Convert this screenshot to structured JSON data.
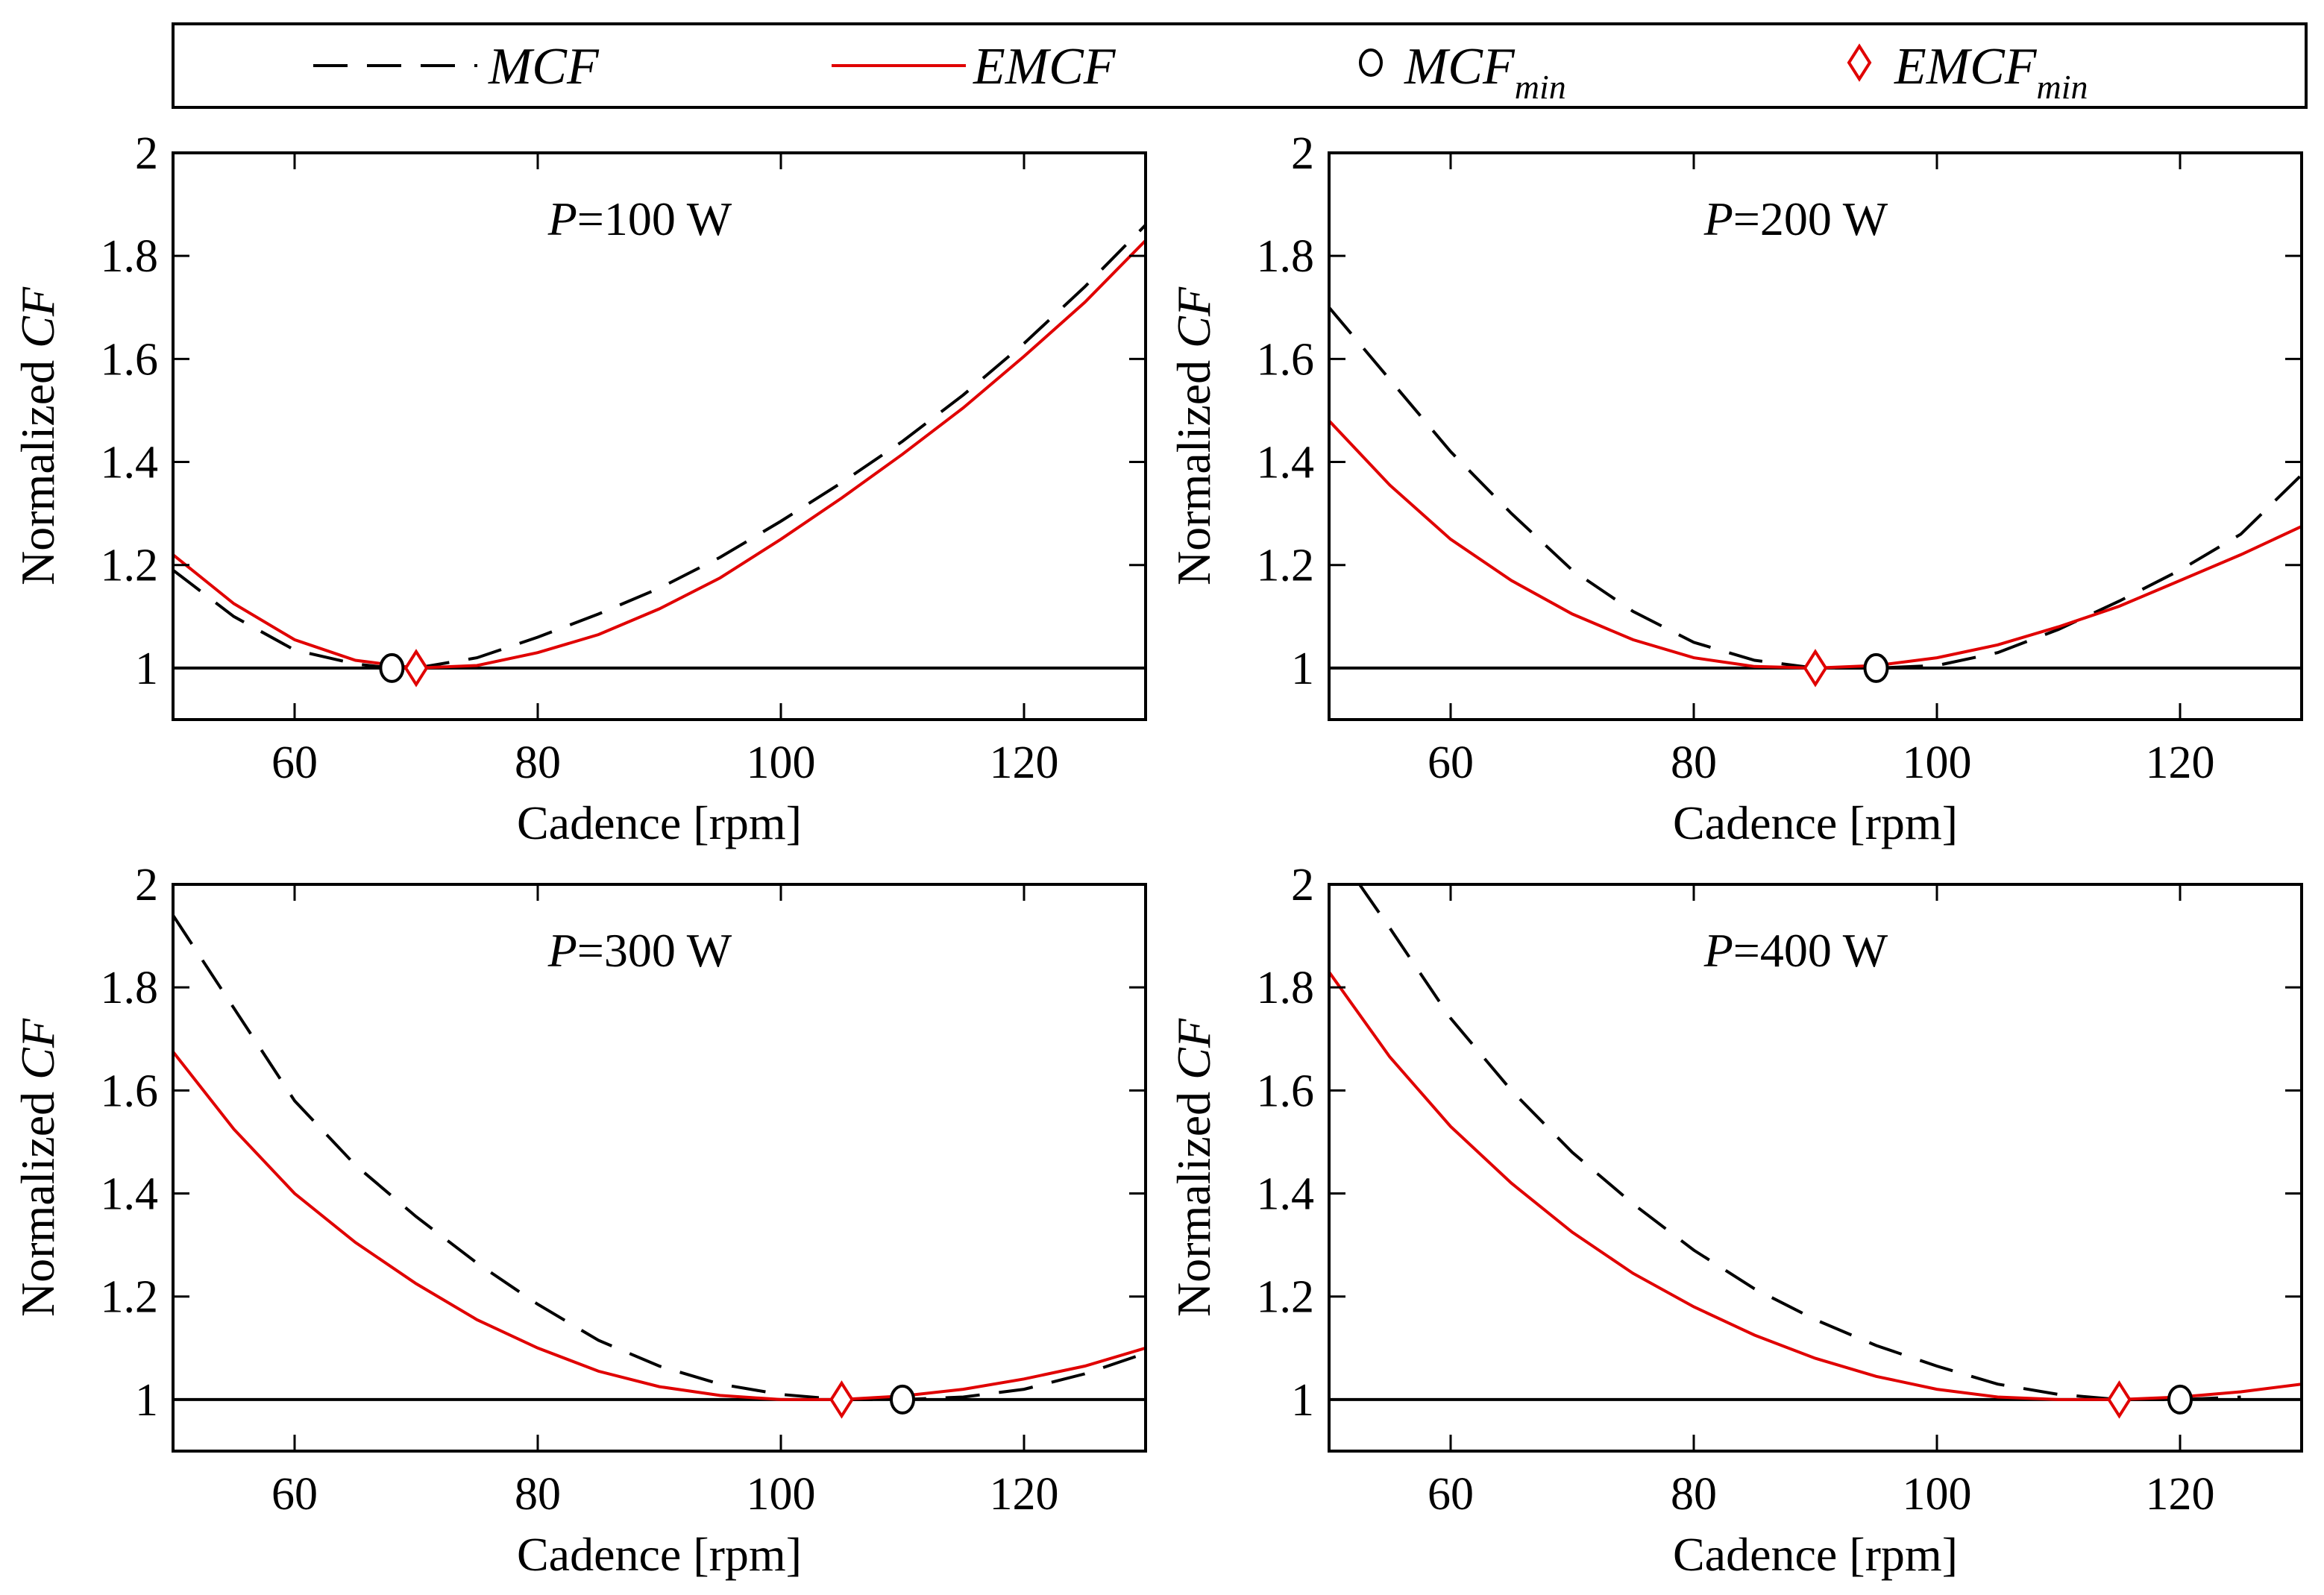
{
  "legend": {
    "items": [
      {
        "name": "MCF",
        "main": "MCF",
        "sub": "",
        "kind": "dashed-line",
        "color": "#000000"
      },
      {
        "name": "EMCF",
        "main": "EMCF",
        "sub": "",
        "kind": "solid-line",
        "color": "#e00000"
      },
      {
        "name": "MCF_min",
        "main": "MCF",
        "sub": "min",
        "kind": "circle-marker",
        "color": "#000000"
      },
      {
        "name": "EMCF_min",
        "main": "EMCF",
        "sub": "min",
        "kind": "diamond-marker",
        "color": "#e00000"
      }
    ]
  },
  "colors": {
    "mcf": "#000000",
    "emcf": "#e00000",
    "reference": "#000000"
  },
  "chart_data": [
    {
      "type": "line",
      "title_prefix": "P",
      "title_suffix": "=100 W",
      "xlabel": "Cadence [rpm]",
      "ylabel_prefix": "Normalized ",
      "ylabel_italic": "CF",
      "xlim": [
        50,
        130
      ],
      "ylim": [
        0.9,
        2.0
      ],
      "xticks": [
        60,
        80,
        100,
        120
      ],
      "yticks": [
        1,
        1.2,
        1.4,
        1.6,
        1.8,
        2
      ],
      "ytick_labels": [
        "1",
        "1.2",
        "1.4",
        "1.6",
        "1.8",
        "2"
      ],
      "reference_line": 1,
      "series": [
        {
          "name": "MCF",
          "x": [
            50,
            55,
            60,
            65,
            68,
            70,
            75,
            80,
            85,
            90,
            95,
            100,
            105,
            110,
            115,
            120,
            125,
            130
          ],
          "y": [
            1.19,
            1.1,
            1.035,
            1.008,
            1.0,
            1.0,
            1.02,
            1.06,
            1.105,
            1.155,
            1.215,
            1.285,
            1.36,
            1.44,
            1.53,
            1.63,
            1.74,
            1.86
          ]
        },
        {
          "name": "EMCF",
          "x": [
            50,
            55,
            60,
            65,
            70,
            75,
            80,
            85,
            90,
            95,
            100,
            105,
            110,
            115,
            120,
            125,
            130
          ],
          "y": [
            1.22,
            1.125,
            1.055,
            1.015,
            1.0,
            1.005,
            1.03,
            1.065,
            1.115,
            1.175,
            1.25,
            1.33,
            1.415,
            1.505,
            1.605,
            1.71,
            1.83
          ]
        }
      ],
      "markers": {
        "MCF_min": {
          "x": 68,
          "y": 1.0
        },
        "EMCF_min": {
          "x": 70,
          "y": 1.0
        }
      }
    },
    {
      "type": "line",
      "title_prefix": "P",
      "title_suffix": "=200 W",
      "xlabel": "Cadence [rpm]",
      "ylabel_prefix": "Normalized ",
      "ylabel_italic": "CF",
      "xlim": [
        50,
        130
      ],
      "ylim": [
        0.9,
        2.0
      ],
      "xticks": [
        60,
        80,
        100,
        120
      ],
      "yticks": [
        1,
        1.2,
        1.4,
        1.6,
        1.8,
        2
      ],
      "ytick_labels": [
        "1",
        "1.2",
        "1.4",
        "1.6",
        "1.8",
        "2"
      ],
      "reference_line": 1,
      "series": [
        {
          "name": "MCF",
          "x": [
            50,
            55,
            60,
            65,
            70,
            75,
            80,
            85,
            90,
            95,
            100,
            105,
            110,
            115,
            120,
            125,
            130
          ],
          "y": [
            1.7,
            1.56,
            1.42,
            1.3,
            1.19,
            1.11,
            1.05,
            1.015,
            1.0,
            1.0,
            1.005,
            1.03,
            1.075,
            1.13,
            1.19,
            1.26,
            1.375
          ]
        },
        {
          "name": "EMCF",
          "x": [
            50,
            55,
            60,
            65,
            70,
            75,
            80,
            85,
            90,
            95,
            100,
            105,
            110,
            115,
            120,
            125,
            130
          ],
          "y": [
            1.48,
            1.355,
            1.25,
            1.17,
            1.105,
            1.055,
            1.02,
            1.003,
            1.0,
            1.005,
            1.02,
            1.045,
            1.08,
            1.12,
            1.17,
            1.22,
            1.275
          ]
        }
      ],
      "markers": {
        "MCF_min": {
          "x": 95,
          "y": 1.0
        },
        "EMCF_min": {
          "x": 90,
          "y": 1.0
        }
      }
    },
    {
      "type": "line",
      "title_prefix": "P",
      "title_suffix": "=300 W",
      "xlabel": "Cadence [rpm]",
      "ylabel_prefix": "Normalized ",
      "ylabel_italic": "CF",
      "xlim": [
        50,
        130
      ],
      "ylim": [
        0.9,
        2.0
      ],
      "xticks": [
        60,
        80,
        100,
        120
      ],
      "yticks": [
        1,
        1.2,
        1.4,
        1.6,
        1.8,
        2
      ],
      "ytick_labels": [
        "1",
        "1.2",
        "1.4",
        "1.6",
        "1.8",
        "2"
      ],
      "reference_line": 1,
      "series": [
        {
          "name": "MCF",
          "x": [
            50,
            55,
            60,
            65,
            70,
            75,
            80,
            85,
            90,
            95,
            100,
            105,
            110,
            115,
            120,
            125,
            130
          ],
          "y": [
            1.94,
            1.76,
            1.58,
            1.455,
            1.355,
            1.265,
            1.185,
            1.115,
            1.065,
            1.03,
            1.01,
            1.0,
            1.0,
            1.005,
            1.02,
            1.05,
            1.09
          ]
        },
        {
          "name": "EMCF",
          "x": [
            50,
            55,
            60,
            65,
            70,
            75,
            80,
            85,
            90,
            95,
            100,
            105,
            110,
            115,
            120,
            125,
            130
          ],
          "y": [
            1.675,
            1.525,
            1.4,
            1.305,
            1.225,
            1.155,
            1.1,
            1.055,
            1.025,
            1.008,
            1.0,
            1.0,
            1.007,
            1.02,
            1.04,
            1.065,
            1.1
          ]
        }
      ],
      "markers": {
        "MCF_min": {
          "x": 110,
          "y": 1.0
        },
        "EMCF_min": {
          "x": 105,
          "y": 1.0
        }
      }
    },
    {
      "type": "line",
      "title_prefix": "P",
      "title_suffix": "=400 W",
      "xlabel": "Cadence [rpm]",
      "ylabel_prefix": "Normalized ",
      "ylabel_italic": "CF",
      "xlim": [
        50,
        130
      ],
      "ylim": [
        0.9,
        2.0
      ],
      "xticks": [
        60,
        80,
        100,
        120
      ],
      "yticks": [
        1,
        1.2,
        1.4,
        1.6,
        1.8,
        2
      ],
      "ytick_labels": [
        "1",
        "1.2",
        "1.4",
        "1.6",
        "1.8",
        "2"
      ],
      "reference_line": 1,
      "series": [
        {
          "name": "MCF",
          "x": [
            52.5,
            55,
            60,
            65,
            70,
            75,
            80,
            85,
            90,
            95,
            100,
            105,
            110,
            115,
            120,
            125
          ],
          "y": [
            2.0,
            1.915,
            1.74,
            1.6,
            1.48,
            1.38,
            1.29,
            1.215,
            1.155,
            1.105,
            1.065,
            1.03,
            1.01,
            1.0,
            1.0,
            1.005
          ]
        },
        {
          "name": "EMCF",
          "x": [
            50,
            55,
            60,
            65,
            70,
            75,
            80,
            85,
            90,
            95,
            100,
            105,
            110,
            115,
            120,
            125,
            130
          ],
          "y": [
            1.83,
            1.665,
            1.53,
            1.42,
            1.325,
            1.245,
            1.18,
            1.125,
            1.08,
            1.045,
            1.02,
            1.005,
            1.0,
            1.0,
            1.005,
            1.015,
            1.03
          ]
        }
      ],
      "markers": {
        "MCF_min": {
          "x": 120,
          "y": 1.0
        },
        "EMCF_min": {
          "x": 115,
          "y": 1.0
        }
      }
    }
  ]
}
